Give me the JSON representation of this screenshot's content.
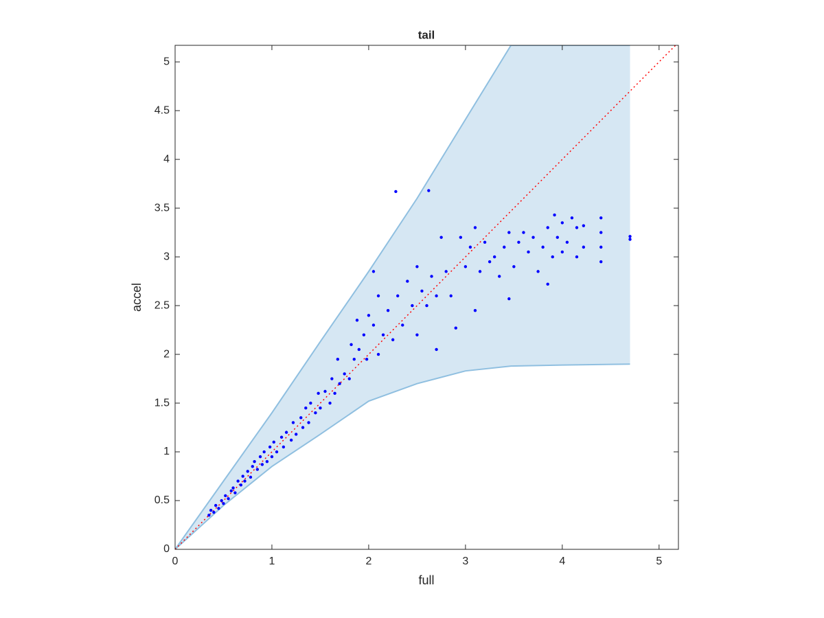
{
  "chart_data": {
    "type": "scatter",
    "title": "tail",
    "x_label": "full",
    "y_label": "accel",
    "xlim": [
      0,
      5.2
    ],
    "ylim": [
      0,
      5.17
    ],
    "xticks": [
      0,
      1,
      2,
      3,
      4,
      5
    ],
    "yticks": [
      0,
      0.5,
      1,
      1.5,
      2,
      2.5,
      3,
      3.5,
      4,
      4.5,
      5
    ],
    "band": {
      "color": "#d6e7f3",
      "edge_color": "#8fbfe0",
      "x": [
        0,
        0.5,
        1,
        1.5,
        2,
        2.5,
        3,
        3.47,
        4,
        4.7
      ],
      "upper": [
        0,
        0.7,
        1.4,
        2.13,
        2.85,
        3.6,
        4.41,
        5.17,
        5.17,
        5.17
      ],
      "lower": [
        0,
        0.45,
        0.85,
        1.18,
        1.52,
        1.7,
        1.83,
        1.88,
        1.89,
        1.9
      ]
    },
    "reference_line": {
      "color": "#ff0000",
      "x": [
        0,
        5.2
      ],
      "y": [
        0,
        5.2
      ]
    },
    "points": {
      "color": "#0000ff",
      "x": [
        0.35,
        0.37,
        0.4,
        0.42,
        0.45,
        0.48,
        0.5,
        0.52,
        0.55,
        0.58,
        0.6,
        0.62,
        0.65,
        0.68,
        0.7,
        0.72,
        0.75,
        0.78,
        0.8,
        0.82,
        0.85,
        0.88,
        0.9,
        0.92,
        0.95,
        0.98,
        1.0,
        1.02,
        1.05,
        1.1,
        1.12,
        1.15,
        1.2,
        1.22,
        1.25,
        1.3,
        1.32,
        1.35,
        1.38,
        1.4,
        1.45,
        1.48,
        1.5,
        1.55,
        1.6,
        1.62,
        1.65,
        1.68,
        1.7,
        1.75,
        1.8,
        1.82,
        1.85,
        1.88,
        1.9,
        1.95,
        1.98,
        2.0,
        2.05,
        2.05,
        2.1,
        2.1,
        2.15,
        2.2,
        2.25,
        2.28,
        2.3,
        2.35,
        2.4,
        2.45,
        2.5,
        2.5,
        2.55,
        2.6,
        2.62,
        2.65,
        2.7,
        2.7,
        2.75,
        2.8,
        2.85,
        2.9,
        2.95,
        3.0,
        3.05,
        3.1,
        3.1,
        3.15,
        3.2,
        3.25,
        3.3,
        3.35,
        3.4,
        3.45,
        3.45,
        3.5,
        3.55,
        3.6,
        3.65,
        3.7,
        3.75,
        3.8,
        3.85,
        3.85,
        3.9,
        3.92,
        3.95,
        4.0,
        4.0,
        4.05,
        4.1,
        4.15,
        4.15,
        4.22,
        4.22,
        4.4,
        4.4,
        4.4,
        4.4,
        4.7,
        4.7
      ],
      "y": [
        0.35,
        0.4,
        0.38,
        0.45,
        0.42,
        0.5,
        0.47,
        0.55,
        0.52,
        0.6,
        0.63,
        0.58,
        0.7,
        0.66,
        0.75,
        0.7,
        0.8,
        0.74,
        0.85,
        0.9,
        0.82,
        0.95,
        0.87,
        1.0,
        0.9,
        1.05,
        0.95,
        1.1,
        1.0,
        1.15,
        1.05,
        1.2,
        1.12,
        1.3,
        1.18,
        1.35,
        1.25,
        1.45,
        1.3,
        1.5,
        1.4,
        1.6,
        1.45,
        1.62,
        1.5,
        1.75,
        1.6,
        1.95,
        1.7,
        1.8,
        1.75,
        2.1,
        1.95,
        2.35,
        2.05,
        2.2,
        1.95,
        2.4,
        2.3,
        2.85,
        2.0,
        2.6,
        2.2,
        2.45,
        2.15,
        3.67,
        2.6,
        2.3,
        2.75,
        2.5,
        2.2,
        2.9,
        2.65,
        2.5,
        3.68,
        2.8,
        2.05,
        2.6,
        3.2,
        2.85,
        2.6,
        2.27,
        3.2,
        2.9,
        3.1,
        2.45,
        3.3,
        2.85,
        3.15,
        2.95,
        3.0,
        2.8,
        3.1,
        2.57,
        3.25,
        2.9,
        3.15,
        3.25,
        3.05,
        3.2,
        2.85,
        3.1,
        2.72,
        3.3,
        3.0,
        3.43,
        3.2,
        3.05,
        3.35,
        3.15,
        3.4,
        3.0,
        3.3,
        3.1,
        3.32,
        2.95,
        3.1,
        3.25,
        3.4,
        3.18,
        3.21
      ]
    }
  }
}
